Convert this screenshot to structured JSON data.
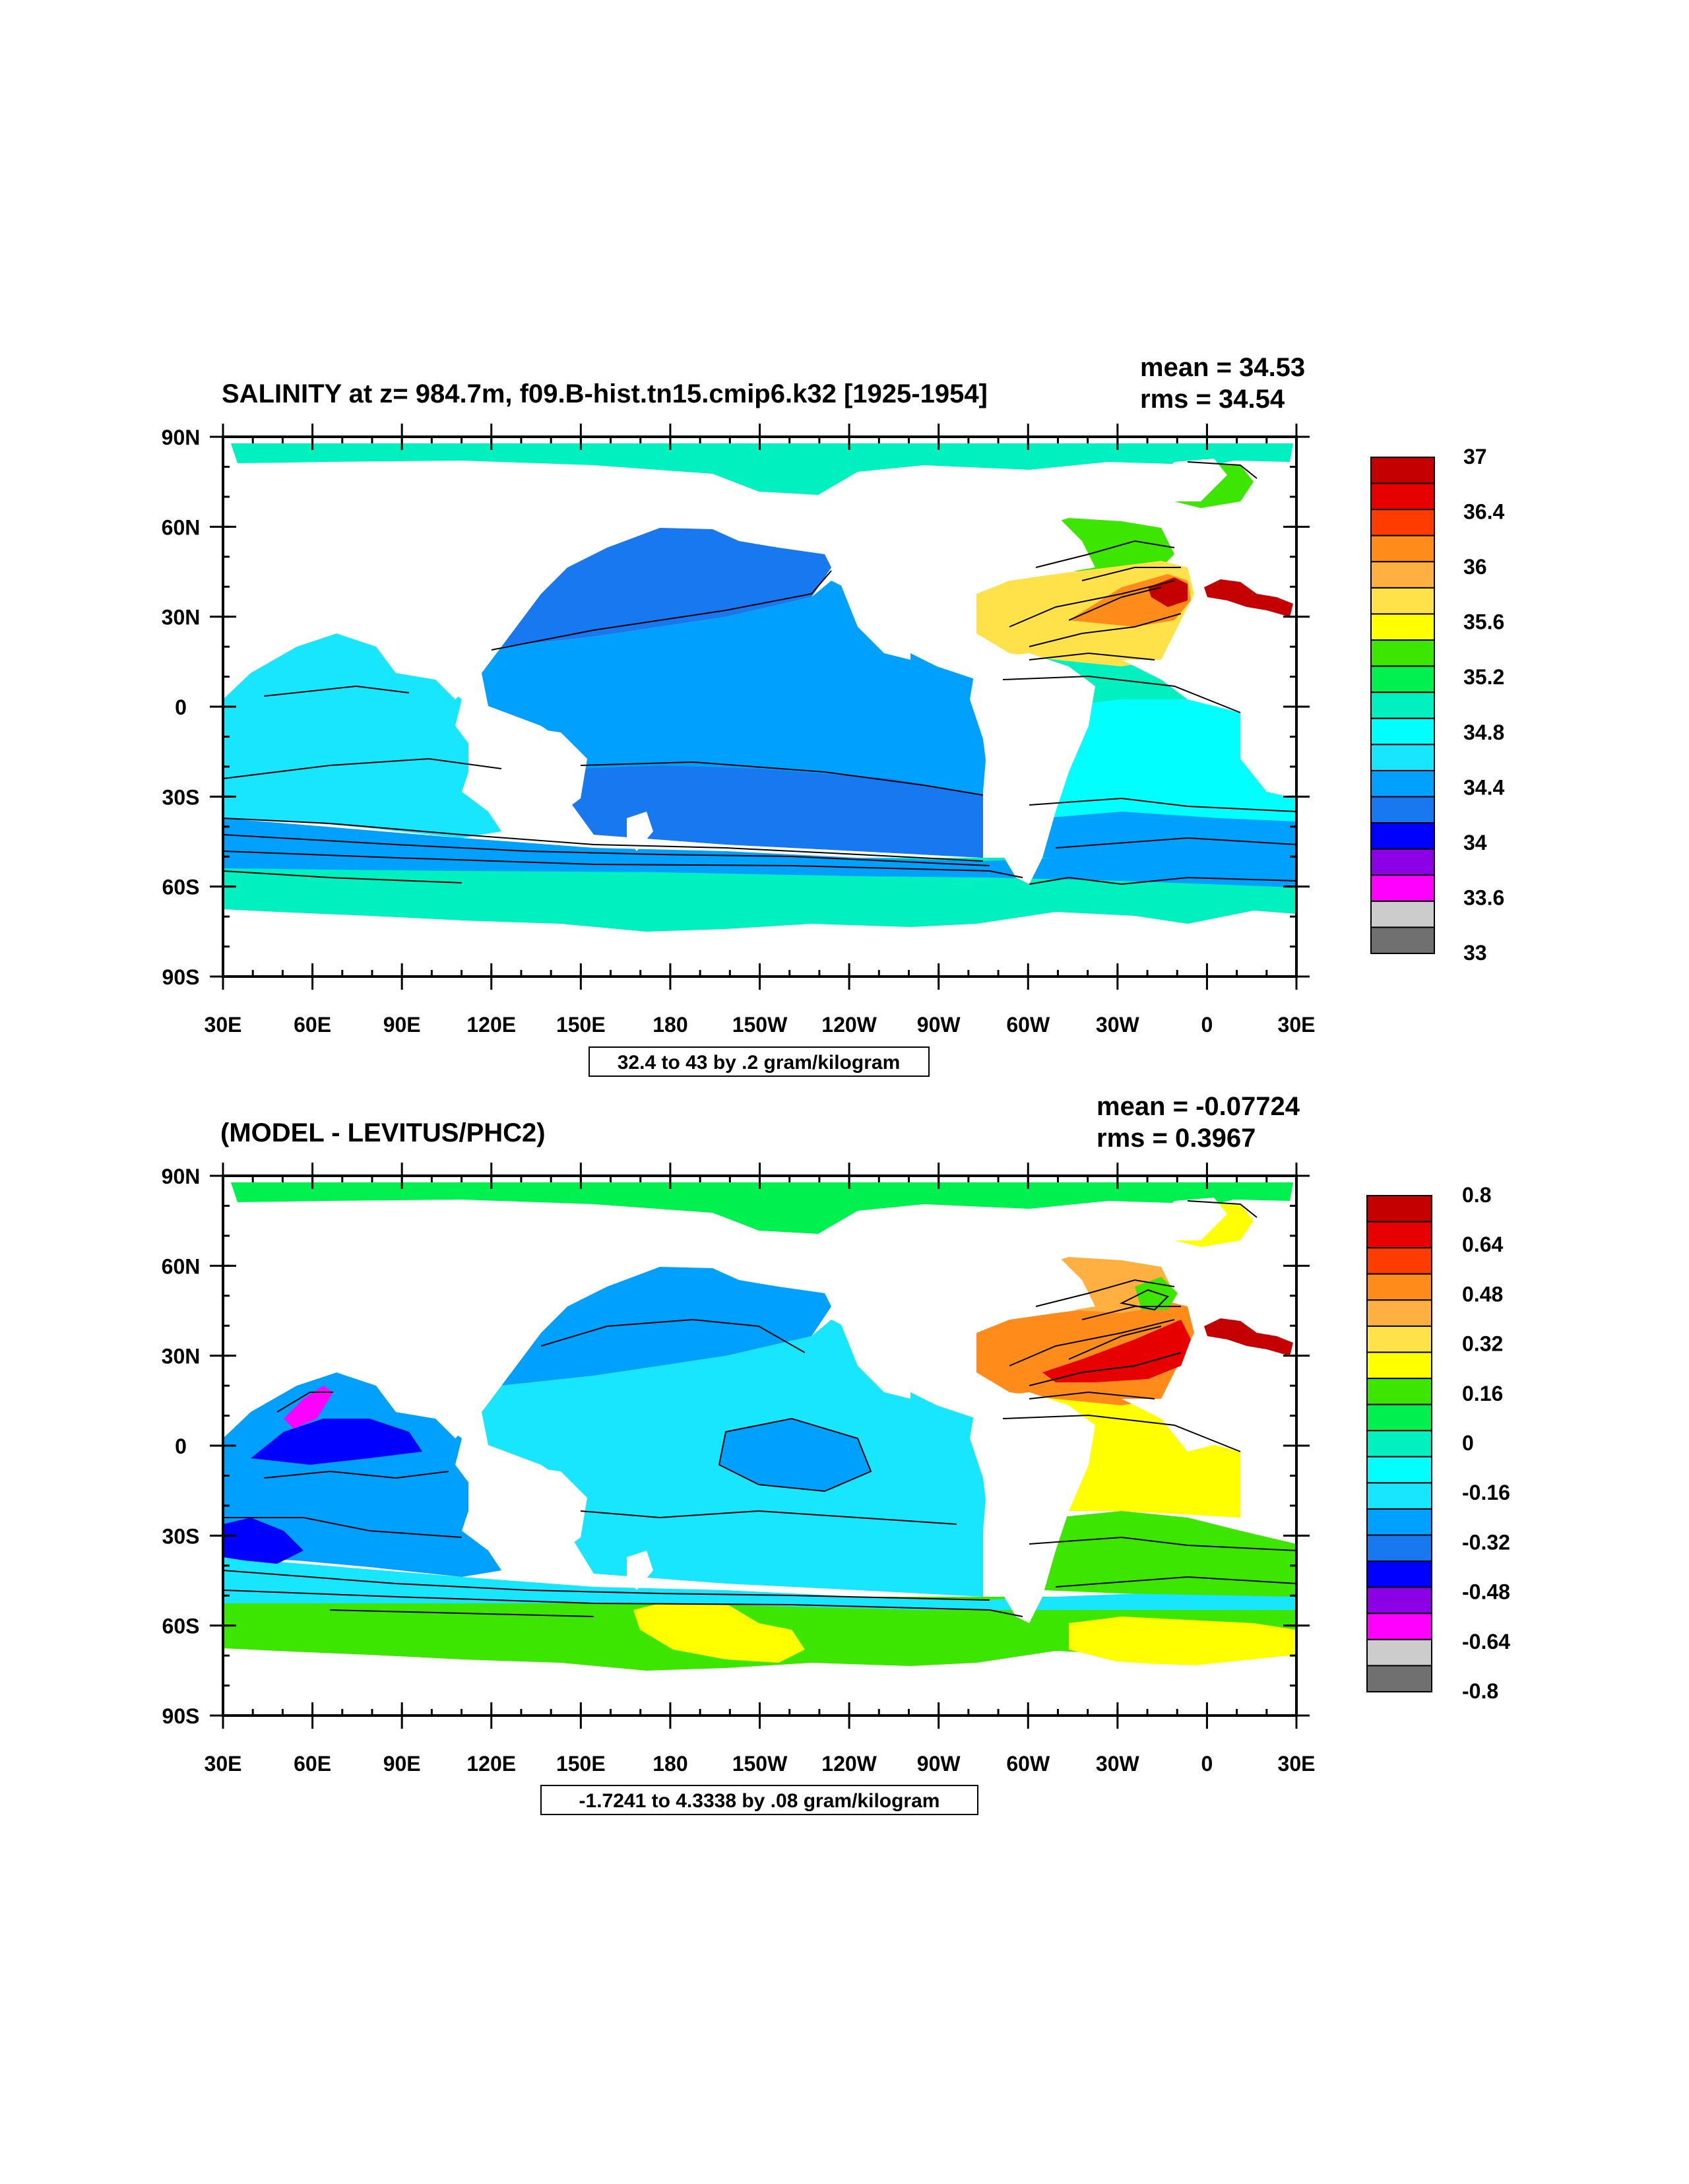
{
  "panels": [
    {
      "title": "SALINITY at z= 984.7m, f09.B-hist.tn15.cmip6.k32 [1925-1954]",
      "mean_text": "mean = 34.53",
      "rms_text": "rms = 34.54",
      "contour_info": "32.4 to 43 by .2 gram/kilogram",
      "lat_labels": [
        "90N",
        "60N",
        "30N",
        "0",
        "30S",
        "60S",
        "90S"
      ],
      "lon_labels": [
        "30E",
        "60E",
        "90E",
        "120E",
        "150E",
        "180",
        "150W",
        "120W",
        "90W",
        "60W",
        "30W",
        "0",
        "30E"
      ],
      "colorbar": {
        "colors": [
          "#c40000",
          "#e60000",
          "#ff3c00",
          "#ff8c1a",
          "#ffb040",
          "#ffe14a",
          "#ffff00",
          "#3ce600",
          "#00f050",
          "#00f0c0",
          "#00ffff",
          "#18e6ff",
          "#00a0ff",
          "#1878f0",
          "#0000ff",
          "#8c00e6",
          "#ff00ff",
          "#cccccc",
          "#707070"
        ],
        "labels": [
          "37",
          "36.4",
          "36",
          "35.6",
          "35.2",
          "34.8",
          "34.4",
          "34",
          "33.6",
          "33"
        ]
      }
    },
    {
      "title": "(MODEL - LEVITUS/PHC2)",
      "mean_text": "mean = -0.07724",
      "rms_text": "rms = 0.3967",
      "contour_info": "-1.7241 to 4.3338 by .08 gram/kilogram",
      "lat_labels": [
        "90N",
        "60N",
        "30N",
        "0",
        "30S",
        "60S",
        "90S"
      ],
      "lon_labels": [
        "30E",
        "60E",
        "90E",
        "120E",
        "150E",
        "180",
        "150W",
        "120W",
        "90W",
        "60W",
        "30W",
        "0",
        "30E"
      ],
      "colorbar": {
        "colors": [
          "#c40000",
          "#e60000",
          "#ff3c00",
          "#ff8c1a",
          "#ffb040",
          "#ffe14a",
          "#ffff00",
          "#3ce600",
          "#00f050",
          "#00f0c0",
          "#00ffff",
          "#18e6ff",
          "#00a0ff",
          "#1878f0",
          "#0000ff",
          "#8c00e6",
          "#ff00ff",
          "#cccccc",
          "#707070"
        ],
        "labels": [
          "0.8",
          "0.64",
          "0.48",
          "0.32",
          "0.16",
          "0",
          "-0.16",
          "-0.32",
          "-0.48",
          "-0.64",
          "-0.8"
        ]
      }
    }
  ],
  "palette": {
    "salinity_fields": {
      "arctic": "#00f0c0",
      "north_pacific": "#1878f0",
      "tropical_pacific": "#00a0ff",
      "indian": "#18e6ff",
      "south_pacific": "#1878f0",
      "southern_ocean": "#00a0ff",
      "antarctic": "#00f0c0",
      "north_atlantic": "#ffe14a",
      "atlantic_core": "#ff8c1a",
      "atlantic_max": "#c40000",
      "subpolar": "#3ce600",
      "south_atlantic": "#00ffff",
      "mediterranean": "#c40000"
    },
    "anomaly_fields": {
      "arctic": "#00f050",
      "north_pacific": "#00a0ff",
      "tropical_pacific": "#18e6ff",
      "indian": "#00a0ff",
      "arabian_sea": "#0000ff",
      "red_sea": "#ff00ff",
      "southern_ocean": "#3ce600",
      "southern_ocean_yellow": "#ffff00",
      "north_atlantic": "#ff8c1a",
      "atlantic_max": "#e60000",
      "tropical_atlantic": "#ffff00",
      "south_atlantic": "#3ce600",
      "mediterranean": "#c40000"
    }
  }
}
